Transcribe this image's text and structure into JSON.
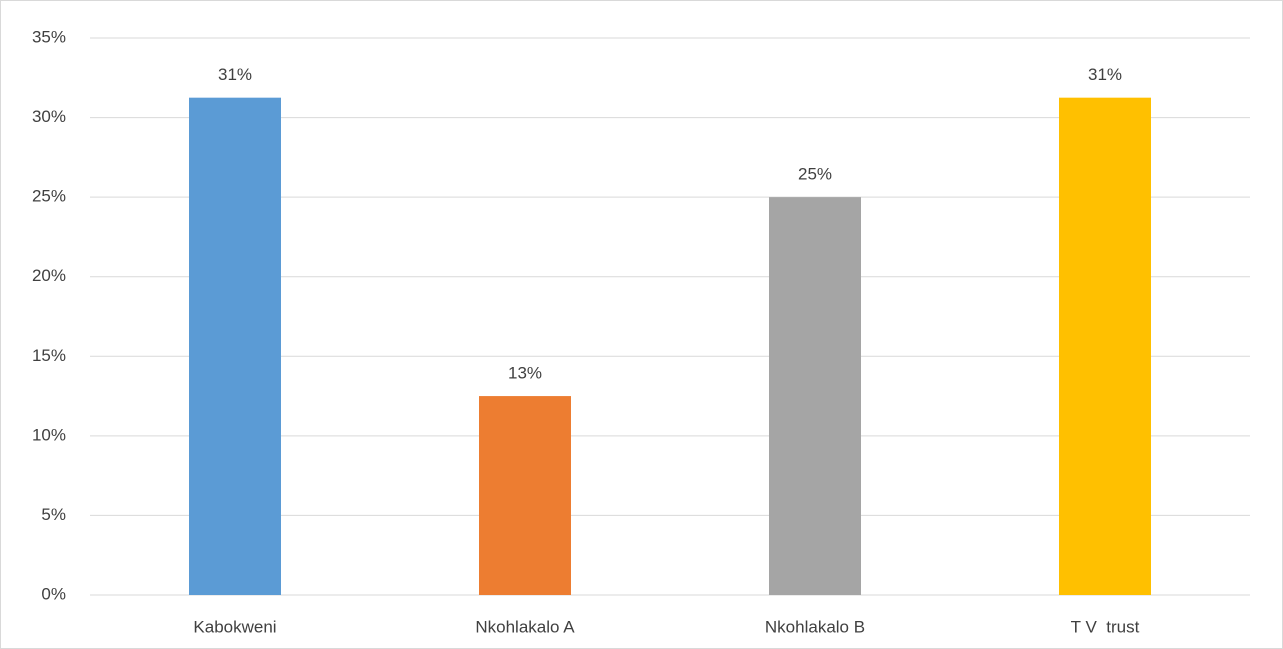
{
  "chart_data": {
    "type": "bar",
    "categories": [
      "Kabokweni",
      "Nkohlakalo A",
      "Nkohlakalo B",
      "T V  trust"
    ],
    "values": [
      31.25,
      12.5,
      25,
      31.25
    ],
    "value_labels": [
      "31%",
      "13%",
      "25%",
      "31%"
    ],
    "colors": [
      "#5b9bd5",
      "#ed7d31",
      "#a5a5a5",
      "#ffc000"
    ],
    "ylim": [
      0,
      35
    ],
    "yticks": [
      {
        "value": 0,
        "label": "0%"
      },
      {
        "value": 5,
        "label": "5%"
      },
      {
        "value": 10,
        "label": "10%"
      },
      {
        "value": 15,
        "label": "15%"
      },
      {
        "value": 20,
        "label": "20%"
      },
      {
        "value": 25,
        "label": "25%"
      },
      {
        "value": 30,
        "label": "30%"
      },
      {
        "value": 35,
        "label": "35%"
      }
    ],
    "grid": true
  }
}
